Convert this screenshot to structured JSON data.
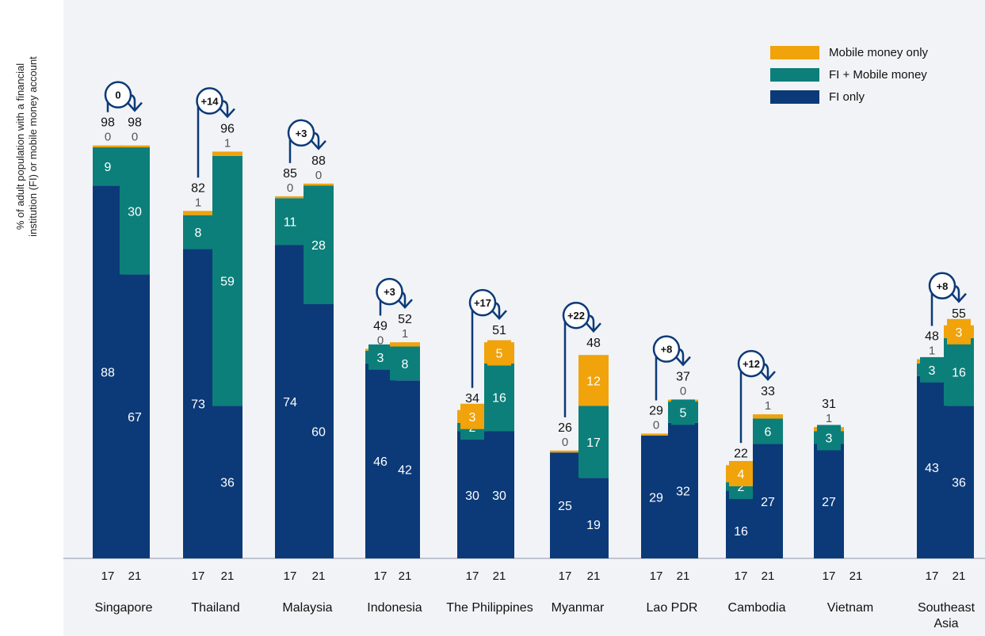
{
  "chart_data": {
    "type": "bar",
    "ylabel_lines": [
      "% of adult population with a financial",
      "institution (FI) or mobile money account"
    ],
    "colors": {
      "mobile_only": "#f0a30a",
      "fi_mobile": "#0c7f7a",
      "fi_only": "#0c3a78",
      "accent": "#0c3a78"
    },
    "legend": [
      {
        "key": "mobile_only",
        "label": "Mobile money only"
      },
      {
        "key": "fi_mobile",
        "label": "FI + Mobile money"
      },
      {
        "key": "fi_only",
        "label": "FI only"
      }
    ],
    "ylim": [
      0,
      100
    ],
    "groups": [
      {
        "name": [
          "Singapore"
        ],
        "change": "0",
        "bars": [
          {
            "year": "17",
            "total": 98,
            "fi_only": 88,
            "fi_mobile": 9,
            "mobile_only": 0
          },
          {
            "year": "21",
            "total": 98,
            "fi_only": 67,
            "fi_mobile": 30,
            "mobile_only": 0
          }
        ]
      },
      {
        "name": [
          "Thailand"
        ],
        "change": "+14",
        "bars": [
          {
            "year": "17",
            "total": 82,
            "fi_only": 73,
            "fi_mobile": 8,
            "mobile_only": 1
          },
          {
            "year": "21",
            "total": 96,
            "fi_only": 36,
            "fi_mobile": 59,
            "mobile_only": 1
          }
        ]
      },
      {
        "name": [
          "Malaysia"
        ],
        "change": "+3",
        "bars": [
          {
            "year": "17",
            "total": 85,
            "fi_only": 74,
            "fi_mobile": 11,
            "mobile_only": 0
          },
          {
            "year": "21",
            "total": 88,
            "fi_only": 60,
            "fi_mobile": 28,
            "mobile_only": 0
          }
        ]
      },
      {
        "name": [
          "Indonesia"
        ],
        "change": "+3",
        "bars": [
          {
            "year": "17",
            "total": 49,
            "fi_only": 46,
            "fi_mobile": 3,
            "mobile_only": 0
          },
          {
            "year": "21",
            "total": 52,
            "fi_only": 42,
            "fi_mobile": 8,
            "mobile_only": 1
          }
        ]
      },
      {
        "name": [
          "The Philippines"
        ],
        "change": "+17",
        "bars": [
          {
            "year": "17",
            "total": 34,
            "fi_only": 30,
            "fi_mobile": 2,
            "mobile_only": 3
          },
          {
            "year": "21",
            "total": 51,
            "fi_only": 30,
            "fi_mobile": 16,
            "mobile_only": 5
          }
        ]
      },
      {
        "name": [
          "Myanmar"
        ],
        "change": "+22",
        "bars": [
          {
            "year": "17",
            "total": 26,
            "fi_only": 25,
            "fi_mobile": null,
            "mobile_only": 0
          },
          {
            "year": "21",
            "total": 48,
            "fi_only": 19,
            "fi_mobile": 17,
            "mobile_only": 12
          }
        ]
      },
      {
        "name": [
          "Lao PDR"
        ],
        "change": "+8",
        "bars": [
          {
            "year": "17",
            "total": 29,
            "fi_only": 29,
            "fi_mobile": null,
            "mobile_only": 0
          },
          {
            "year": "21",
            "total": 37,
            "fi_only": 32,
            "fi_mobile": 5,
            "mobile_only": 0
          }
        ]
      },
      {
        "name": [
          "Cambodia"
        ],
        "change": "+12",
        "bars": [
          {
            "year": "17",
            "total": 22,
            "fi_only": 16,
            "fi_mobile": 2,
            "mobile_only": 4
          },
          {
            "year": "21",
            "total": 33,
            "fi_only": 27,
            "fi_mobile": 6,
            "mobile_only": 1
          }
        ]
      },
      {
        "name": [
          "Vietnam"
        ],
        "change": null,
        "bars": [
          {
            "year": "17",
            "total": 31,
            "fi_only": 27,
            "fi_mobile": 3,
            "mobile_only": 1
          },
          {
            "year": "21",
            "total": null,
            "fi_only": null,
            "fi_mobile": null,
            "mobile_only": null
          }
        ]
      },
      {
        "name": [
          "Southeast",
          "Asia"
        ],
        "change": "+8",
        "bars": [
          {
            "year": "17",
            "total": 48,
            "fi_only": 43,
            "fi_mobile": 3,
            "mobile_only": 1
          },
          {
            "year": "21",
            "total": 55,
            "fi_only": 36,
            "fi_mobile": 16,
            "mobile_only": 3
          }
        ]
      }
    ]
  }
}
